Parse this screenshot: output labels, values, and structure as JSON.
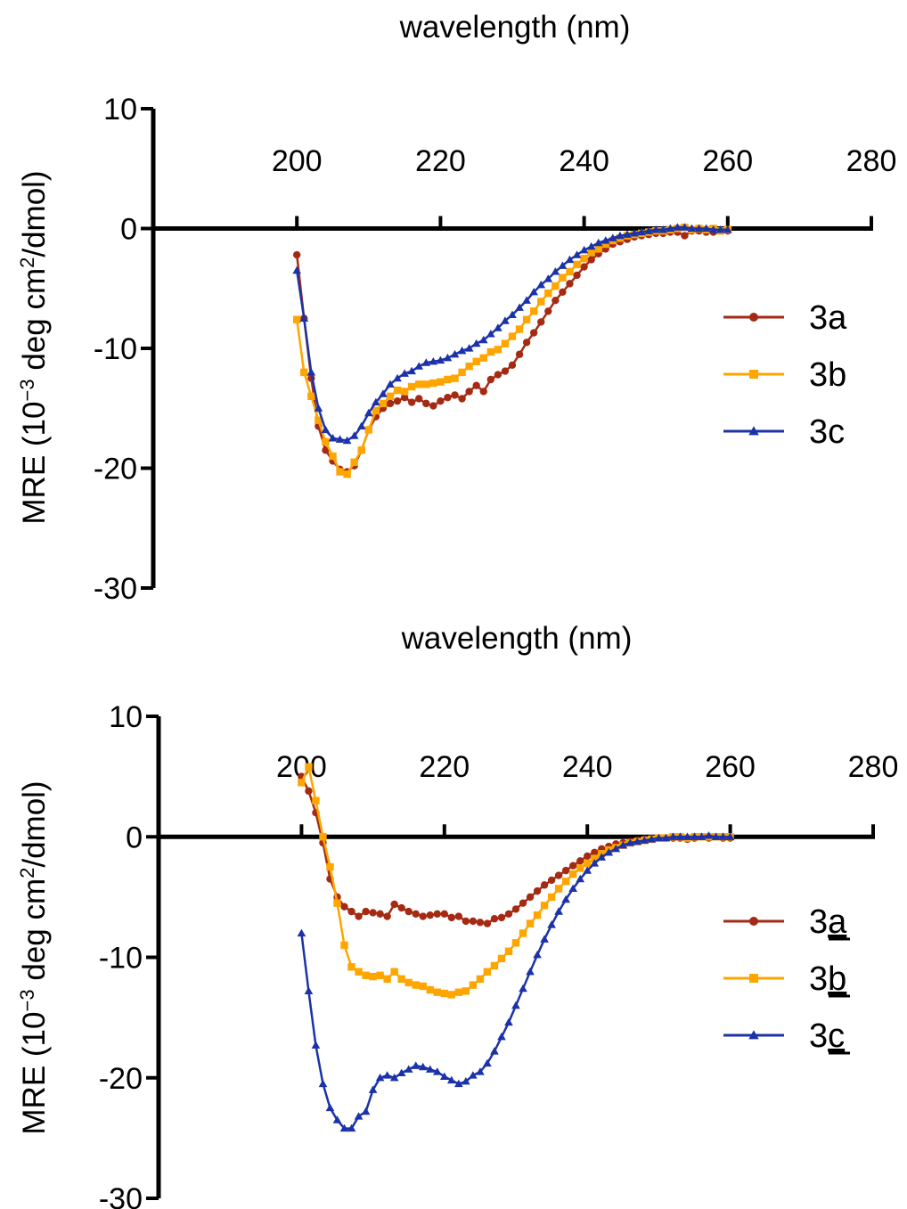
{
  "colors": {
    "3a": "#a52a14",
    "3b": "#ffa500",
    "3c": "#1b32a8",
    "axis": "#000000"
  },
  "chart_data": [
    {
      "type": "line",
      "xlabel": "wavelength (nm)",
      "ylabel": "MRE (10",
      "ylabel_sup1": "−3",
      "ylabel_mid": " deg cm",
      "ylabel_sup2": "2",
      "ylabel_end": "/dmol)",
      "xlim": [
        180,
        280
      ],
      "ylim": [
        -30,
        10
      ],
      "xticks": [
        200,
        220,
        240,
        260,
        280
      ],
      "yticks": [
        10,
        0,
        -10,
        -20,
        -30
      ],
      "ytick_labels": [
        "10",
        "0",
        "-10",
        "-20",
        "-30"
      ],
      "legend_position": "right",
      "series": [
        {
          "name": "3a",
          "marker": "circle",
          "color": "#a52a14",
          "x": [
            200,
            201,
            202,
            203,
            204,
            205,
            206,
            207,
            208,
            209,
            210,
            211,
            212,
            213,
            214,
            215,
            216,
            217,
            218,
            219,
            220,
            221,
            222,
            223,
            224,
            225,
            226,
            227,
            228,
            229,
            230,
            231,
            232,
            233,
            234,
            235,
            236,
            237,
            238,
            239,
            240,
            241,
            242,
            243,
            244,
            245,
            246,
            247,
            248,
            249,
            250,
            251,
            252,
            253,
            254,
            255,
            256,
            257,
            258,
            259,
            260
          ],
          "y": [
            -2.2,
            -7.5,
            -12.5,
            -16.5,
            -18.5,
            -19.4,
            -20.1,
            -20.3,
            -19.8,
            -18.5,
            -16.8,
            -15.7,
            -15.0,
            -14.6,
            -14.4,
            -14.1,
            -14.5,
            -14.2,
            -14.6,
            -14.8,
            -14.4,
            -14.1,
            -13.9,
            -14.2,
            -13.6,
            -13.1,
            -13.6,
            -12.6,
            -12.2,
            -11.9,
            -11.4,
            -10.5,
            -9.5,
            -8.7,
            -7.8,
            -6.9,
            -6.0,
            -5.3,
            -4.6,
            -3.9,
            -3.2,
            -2.6,
            -2.1,
            -1.7,
            -1.3,
            -1.1,
            -0.9,
            -0.7,
            -0.6,
            -0.5,
            -0.4,
            -0.4,
            -0.3,
            -0.3,
            -0.6,
            -0.2,
            -0.2,
            -0.3,
            -0.3,
            -0.2,
            -0.2
          ]
        },
        {
          "name": "3b",
          "marker": "square",
          "color": "#ffa500",
          "x": [
            200,
            201,
            202,
            203,
            204,
            205,
            206,
            207,
            208,
            209,
            210,
            211,
            212,
            213,
            214,
            215,
            216,
            217,
            218,
            219,
            220,
            221,
            222,
            223,
            224,
            225,
            226,
            227,
            228,
            229,
            230,
            231,
            232,
            233,
            234,
            235,
            236,
            237,
            238,
            239,
            240,
            241,
            242,
            243,
            244,
            245,
            246,
            247,
            248,
            249,
            250,
            251,
            252,
            253,
            254,
            255,
            256,
            257,
            258,
            259,
            260
          ],
          "y": [
            -7.6,
            -12.0,
            -14.0,
            -16.0,
            -17.8,
            -19.0,
            -20.3,
            -20.5,
            -19.5,
            -18.5,
            -16.8,
            -15.2,
            -14.6,
            -14.0,
            -13.5,
            -13.6,
            -13.2,
            -13.0,
            -13.0,
            -12.9,
            -12.8,
            -12.6,
            -12.5,
            -12.0,
            -11.5,
            -11.1,
            -10.8,
            -10.3,
            -10.1,
            -9.6,
            -9.0,
            -8.4,
            -7.6,
            -6.9,
            -6.1,
            -5.4,
            -4.8,
            -4.1,
            -3.6,
            -3.0,
            -2.5,
            -2.0,
            -1.7,
            -1.3,
            -1.0,
            -0.8,
            -0.6,
            -0.5,
            -0.4,
            -0.3,
            -0.2,
            -0.2,
            -0.1,
            0.0,
            0.1,
            -0.1,
            0.0,
            -0.1,
            0.0,
            -0.2,
            -0.1
          ]
        },
        {
          "name": "3c",
          "marker": "triangle",
          "color": "#1b32a8",
          "x": [
            200,
            201,
            202,
            203,
            204,
            205,
            206,
            207,
            208,
            209,
            210,
            211,
            212,
            213,
            214,
            215,
            216,
            217,
            218,
            219,
            220,
            221,
            222,
            223,
            224,
            225,
            226,
            227,
            228,
            229,
            230,
            231,
            232,
            233,
            234,
            235,
            236,
            237,
            238,
            239,
            240,
            241,
            242,
            243,
            244,
            245,
            246,
            247,
            248,
            249,
            250,
            251,
            252,
            253,
            254,
            255,
            256,
            257,
            258,
            259,
            260
          ],
          "y": [
            -3.5,
            -7.5,
            -12.0,
            -15.0,
            -16.8,
            -17.5,
            -17.6,
            -17.7,
            -17.3,
            -16.5,
            -15.4,
            -14.5,
            -13.8,
            -13.0,
            -12.5,
            -12.1,
            -11.9,
            -11.5,
            -11.2,
            -11.1,
            -11.0,
            -10.8,
            -10.5,
            -10.2,
            -10.0,
            -9.6,
            -9.3,
            -8.8,
            -8.3,
            -7.7,
            -7.2,
            -6.6,
            -6.0,
            -5.3,
            -4.7,
            -4.2,
            -3.6,
            -3.1,
            -2.6,
            -2.2,
            -1.8,
            -1.5,
            -1.2,
            -1.0,
            -0.8,
            -0.6,
            -0.5,
            -0.4,
            -0.3,
            -0.2,
            -0.1,
            -0.1,
            0.0,
            0.1,
            0.1,
            0.0,
            0.0,
            0.0,
            -0.1,
            -0.1,
            -0.1
          ]
        }
      ]
    },
    {
      "type": "line",
      "xlabel": "wavelength (nm)",
      "ylabel": "MRE (10",
      "ylabel_sup1": "−3",
      "ylabel_mid": " deg cm",
      "ylabel_sup2": "2",
      "ylabel_end": "/dmol)",
      "xlim": [
        180,
        280
      ],
      "ylim": [
        -30,
        10
      ],
      "xticks": [
        200,
        220,
        240,
        260,
        280
      ],
      "yticks": [
        10,
        0,
        -10,
        -20,
        -30
      ],
      "ytick_labels": [
        "10",
        "0",
        "-10",
        "-20",
        "-30"
      ],
      "legend_position": "right",
      "legend_underline": true,
      "series": [
        {
          "name": "3a",
          "marker": "circle",
          "color": "#a52a14",
          "x": [
            200,
            201,
            202,
            203,
            204,
            205,
            206,
            207,
            208,
            209,
            210,
            211,
            212,
            213,
            214,
            215,
            216,
            217,
            218,
            219,
            220,
            221,
            222,
            223,
            224,
            225,
            226,
            227,
            228,
            229,
            230,
            231,
            232,
            233,
            234,
            235,
            236,
            237,
            238,
            239,
            240,
            241,
            242,
            243,
            244,
            245,
            246,
            247,
            248,
            249,
            250,
            251,
            252,
            253,
            254,
            255,
            256,
            257,
            258,
            259,
            260
          ],
          "y": [
            5.0,
            3.8,
            2.0,
            -0.5,
            -3.5,
            -5.0,
            -5.8,
            -6.2,
            -6.6,
            -6.2,
            -6.3,
            -6.4,
            -6.6,
            -5.6,
            -5.9,
            -6.2,
            -6.4,
            -6.6,
            -6.5,
            -6.4,
            -6.4,
            -6.7,
            -6.6,
            -7.0,
            -7.0,
            -7.1,
            -7.2,
            -6.8,
            -6.7,
            -6.4,
            -6.0,
            -5.5,
            -5.0,
            -4.5,
            -4.0,
            -3.6,
            -3.2,
            -2.8,
            -2.4,
            -2.0,
            -1.6,
            -1.3,
            -1.0,
            -0.8,
            -0.6,
            -0.5,
            -0.4,
            -0.3,
            -0.2,
            -0.2,
            -0.1,
            -0.1,
            -0.1,
            -0.1,
            -0.2,
            -0.1,
            0.0,
            -0.1,
            0.0,
            -0.1,
            -0.1
          ]
        },
        {
          "name": "3b",
          "marker": "square",
          "color": "#ffa500",
          "x": [
            200,
            201,
            202,
            203,
            204,
            205,
            206,
            207,
            208,
            209,
            210,
            211,
            212,
            213,
            214,
            215,
            216,
            217,
            218,
            219,
            220,
            221,
            222,
            223,
            224,
            225,
            226,
            227,
            228,
            229,
            230,
            231,
            232,
            233,
            234,
            235,
            236,
            237,
            238,
            239,
            240,
            241,
            242,
            243,
            244,
            245,
            246,
            247,
            248,
            249,
            250,
            251,
            252,
            253,
            254,
            255,
            256,
            257,
            258,
            259,
            260
          ],
          "y": [
            4.5,
            5.8,
            3.0,
            0.0,
            -2.5,
            -5.5,
            -9.0,
            -10.8,
            -11.2,
            -11.5,
            -11.6,
            -11.5,
            -11.8,
            -11.2,
            -11.8,
            -12.1,
            -12.3,
            -12.4,
            -12.7,
            -12.9,
            -13.0,
            -13.1,
            -12.9,
            -12.8,
            -12.3,
            -11.8,
            -11.2,
            -10.7,
            -10.1,
            -9.5,
            -8.8,
            -8.0,
            -7.2,
            -6.5,
            -5.7,
            -5.0,
            -4.3,
            -3.7,
            -3.1,
            -2.6,
            -2.2,
            -1.8,
            -1.4,
            -1.1,
            -0.9,
            -0.7,
            -0.5,
            -0.4,
            -0.3,
            -0.2,
            -0.1,
            -0.1,
            0.0,
            0.0,
            -0.1,
            0.0,
            0.0,
            0.0,
            0.0,
            0.0,
            0.0
          ]
        },
        {
          "name": "3c",
          "marker": "triangle",
          "color": "#1b32a8",
          "x": [
            200,
            201,
            202,
            203,
            204,
            205,
            206,
            207,
            208,
            209,
            210,
            211,
            212,
            213,
            214,
            215,
            216,
            217,
            218,
            219,
            220,
            221,
            222,
            223,
            224,
            225,
            226,
            227,
            228,
            229,
            230,
            231,
            232,
            233,
            234,
            235,
            236,
            237,
            238,
            239,
            240,
            241,
            242,
            243,
            244,
            245,
            246,
            247,
            248,
            249,
            250,
            251,
            252,
            253,
            254,
            255,
            256,
            257,
            258,
            259,
            260
          ],
          "y": [
            -8.0,
            -12.8,
            -17.3,
            -20.5,
            -22.5,
            -23.5,
            -24.2,
            -24.2,
            -23.2,
            -22.8,
            -21.0,
            -20.0,
            -19.8,
            -20.0,
            -19.6,
            -19.3,
            -19.0,
            -19.1,
            -19.3,
            -19.5,
            -19.9,
            -20.2,
            -20.5,
            -20.3,
            -19.8,
            -19.5,
            -18.8,
            -17.8,
            -16.6,
            -15.4,
            -14.0,
            -12.6,
            -11.2,
            -9.8,
            -8.5,
            -7.3,
            -6.2,
            -5.2,
            -4.3,
            -3.5,
            -2.8,
            -2.2,
            -1.7,
            -1.3,
            -1.0,
            -0.7,
            -0.5,
            -0.4,
            -0.3,
            -0.2,
            -0.1,
            -0.1,
            0.0,
            0.0,
            0.0,
            0.0,
            0.0,
            0.1,
            0.0,
            0.0,
            0.0
          ]
        }
      ]
    }
  ]
}
